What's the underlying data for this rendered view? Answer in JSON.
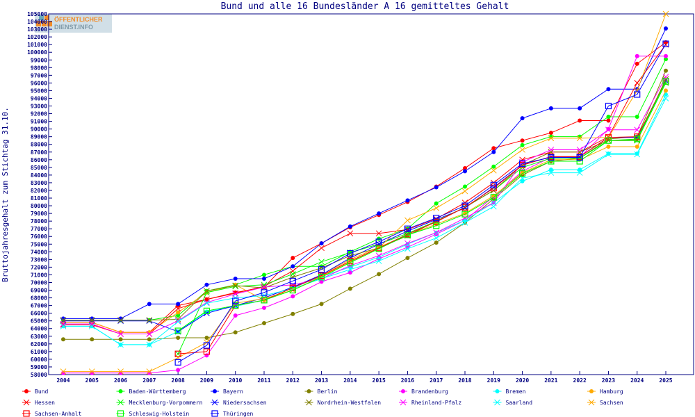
{
  "logo_text": "ÖFFENTLICHER DIENST.INFO",
  "chart_data": {
    "type": "line",
    "title": "Bund und alle 16 Bundesländer A 16 gemitteltes Gehalt",
    "xlabel": "",
    "ylabel": "Bruttojahresgehalt zum Stichtag 31.10.",
    "ylim": [
      58000,
      105000
    ],
    "ytick_step": 1000,
    "grid": false,
    "legend_position": "bottom",
    "x": [
      2004,
      2005,
      2006,
      2007,
      2008,
      2009,
      2010,
      2011,
      2012,
      2013,
      2014,
      2015,
      2016,
      2017,
      2018,
      2019,
      2020,
      2021,
      2022,
      2023,
      2024,
      2025
    ],
    "series": [
      {
        "name": "Bund",
        "color": "#ff0000",
        "marker": "dot",
        "values": [
          64800,
          64800,
          63500,
          63500,
          67000,
          67800,
          68700,
          69400,
          73200,
          75100,
          77200,
          78800,
          80500,
          82500,
          84900,
          87500,
          88500,
          89500,
          91100,
          91100,
          98500,
          101300
        ]
      },
      {
        "name": "Baden-Württemberg",
        "color": "#00ff00",
        "marker": "dot",
        "values": [
          65100,
          65100,
          65100,
          65100,
          65700,
          68900,
          69700,
          71000,
          72100,
          72100,
          74000,
          75700,
          77000,
          80300,
          82500,
          85100,
          87900,
          89000,
          89000,
          91600,
          91600,
          99100
        ]
      },
      {
        "name": "Bayern",
        "color": "#0000ff",
        "marker": "dot",
        "values": [
          65300,
          65300,
          65300,
          67200,
          67200,
          69700,
          70500,
          70500,
          72100,
          75100,
          77300,
          79000,
          80700,
          82400,
          84500,
          87000,
          91400,
          92700,
          92700,
          95200,
          95200,
          103100
        ]
      },
      {
        "name": "Berlin",
        "color": "#808000",
        "marker": "dot",
        "values": [
          62600,
          62600,
          62600,
          62600,
          62800,
          62800,
          63500,
          64700,
          65900,
          67200,
          69200,
          71100,
          73200,
          75200,
          77800,
          80900,
          84000,
          85800,
          86200,
          88700,
          89000,
          97600
        ]
      },
      {
        "name": "Brandenburg",
        "color": "#ff00ff",
        "marker": "dot",
        "values": [
          58200,
          58200,
          58200,
          58200,
          58600,
          60500,
          65700,
          66700,
          68200,
          70100,
          71300,
          73100,
          74600,
          76300,
          78100,
          81200,
          84500,
          86300,
          86300,
          90000,
          99500,
          99500
        ]
      },
      {
        "name": "Bremen",
        "color": "#00ffff",
        "marker": "dot",
        "values": [
          64300,
          64300,
          61900,
          61900,
          63600,
          66200,
          66900,
          67700,
          69300,
          70800,
          72000,
          73300,
          75000,
          76500,
          78100,
          80400,
          83200,
          84700,
          84700,
          86800,
          86800,
          94500
        ]
      },
      {
        "name": "Hamburg",
        "color": "#ffaa00",
        "marker": "dot",
        "values": [
          64800,
          64800,
          63500,
          63500,
          66100,
          68700,
          69700,
          67700,
          69300,
          71000,
          73000,
          74600,
          76200,
          77600,
          79000,
          81300,
          84300,
          86000,
          86000,
          87700,
          87700,
          95000
        ]
      },
      {
        "name": "Hessen",
        "color": "#ff0000",
        "marker": "x",
        "values": [
          64500,
          64500,
          63300,
          63300,
          66600,
          67800,
          68600,
          69500,
          71500,
          74500,
          76400,
          76400,
          76900,
          78300,
          80400,
          83000,
          86000,
          87000,
          87000,
          89000,
          96000,
          101000
        ]
      },
      {
        "name": "Mecklenburg-Vorpommern",
        "color": "#00ff00",
        "marker": "x",
        "values": [
          null,
          null,
          null,
          null,
          60700,
          68700,
          69500,
          69700,
          71100,
          72700,
          73900,
          75000,
          76400,
          78000,
          79800,
          82000,
          85000,
          86200,
          86200,
          88500,
          88500,
          96000
        ]
      },
      {
        "name": "Niedersachsen",
        "color": "#0000ff",
        "marker": "x",
        "values": [
          65000,
          65000,
          65000,
          65000,
          63600,
          66000,
          67000,
          68000,
          69400,
          71000,
          73200,
          75000,
          76700,
          78200,
          79700,
          82400,
          85300,
          86400,
          86400,
          88900,
          88900,
          96300
        ]
      },
      {
        "name": "Nordrhein-Westfalen",
        "color": "#808000",
        "marker": "x",
        "values": [
          65100,
          65100,
          65100,
          65100,
          65200,
          68900,
          69600,
          69300,
          70700,
          71900,
          73500,
          74500,
          76100,
          78000,
          79800,
          82000,
          85300,
          87000,
          87000,
          88500,
          88600,
          96500
        ]
      },
      {
        "name": "Rheinland-Pfalz",
        "color": "#ff00ff",
        "marker": "x",
        "values": [
          64600,
          64600,
          63300,
          63300,
          65000,
          67400,
          68500,
          69400,
          69700,
          70500,
          72200,
          73500,
          75100,
          76500,
          78400,
          80400,
          85700,
          87300,
          87300,
          89900,
          89900,
          96800
        ]
      },
      {
        "name": "Saarland",
        "color": "#00ffff",
        "marker": "x",
        "values": [
          64300,
          64300,
          61900,
          61900,
          64900,
          67300,
          68000,
          68300,
          69200,
          70500,
          71700,
          72800,
          74400,
          75800,
          77800,
          79900,
          83600,
          84300,
          84300,
          86700,
          86700,
          94000
        ]
      },
      {
        "name": "Sachsen",
        "color": "#ffaa00",
        "marker": "x",
        "values": [
          58400,
          58400,
          58400,
          58400,
          60200,
          62200,
          67300,
          67900,
          69000,
          70800,
          72700,
          74500,
          78100,
          79700,
          81900,
          84600,
          87300,
          88800,
          88800,
          88900,
          95000,
          105000
        ]
      },
      {
        "name": "Sachsen-Anhalt",
        "color": "#ff0000",
        "marker": "square",
        "values": [
          null,
          null,
          null,
          null,
          60700,
          61000,
          67000,
          67700,
          69300,
          70900,
          72800,
          74500,
          76300,
          77900,
          79800,
          82300,
          85300,
          86400,
          86400,
          88900,
          89000,
          96200
        ]
      },
      {
        "name": "Schleswig-Holstein",
        "color": "#00ff00",
        "marker": "square",
        "values": [
          null,
          null,
          null,
          null,
          63700,
          66300,
          67000,
          67700,
          69000,
          70700,
          72600,
          74400,
          76200,
          77400,
          78900,
          81100,
          84200,
          85800,
          85800,
          88500,
          88700,
          96200
        ]
      },
      {
        "name": "Thüringen",
        "color": "#0000ff",
        "marker": "square",
        "values": [
          null,
          null,
          null,
          null,
          59600,
          61800,
          67600,
          68700,
          70200,
          71700,
          73800,
          75300,
          77000,
          78400,
          80000,
          82700,
          85500,
          86300,
          86300,
          93000,
          94500,
          101100
        ]
      }
    ]
  }
}
